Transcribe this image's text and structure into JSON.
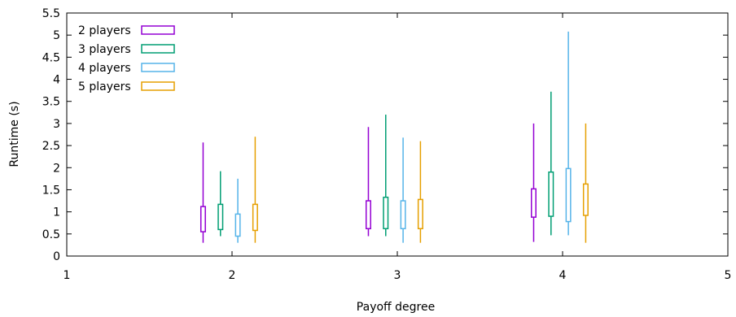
{
  "chart_data": {
    "type": "box",
    "xlabel": "Payoff degree",
    "ylabel": "Runtime (s)",
    "xlim": [
      1,
      5
    ],
    "ylim": [
      0,
      5.5
    ],
    "x_ticks": [
      "1",
      "2",
      "3",
      "4",
      "5"
    ],
    "y_ticks": [
      "0",
      "0.5",
      "1",
      "1.5",
      "2",
      "2.5",
      "3",
      "3.5",
      "4",
      "4.5",
      "5",
      "5.5"
    ],
    "legend_position": "top-left",
    "grid": false,
    "categories": [
      2,
      3,
      4
    ],
    "series": [
      {
        "name": "2 players",
        "color": "#9400d3",
        "boxes": [
          {
            "x": 2,
            "min": 0.3,
            "q1": 0.55,
            "q3": 1.12,
            "max": 2.57
          },
          {
            "x": 3,
            "min": 0.45,
            "q1": 0.62,
            "q3": 1.25,
            "max": 2.92
          },
          {
            "x": 4,
            "min": 0.32,
            "q1": 0.88,
            "q3": 1.52,
            "max": 3.0
          }
        ]
      },
      {
        "name": "3 players",
        "color": "#009e73",
        "boxes": [
          {
            "x": 2,
            "min": 0.45,
            "q1": 0.6,
            "q3": 1.17,
            "max": 1.92
          },
          {
            "x": 3,
            "min": 0.45,
            "q1": 0.62,
            "q3": 1.33,
            "max": 3.2
          },
          {
            "x": 4,
            "min": 0.47,
            "q1": 0.9,
            "q3": 1.9,
            "max": 3.72
          }
        ]
      },
      {
        "name": "4 players",
        "color": "#56b4e9",
        "boxes": [
          {
            "x": 2,
            "min": 0.3,
            "q1": 0.45,
            "q3": 0.95,
            "max": 1.75
          },
          {
            "x": 3,
            "min": 0.3,
            "q1": 0.62,
            "q3": 1.25,
            "max": 2.68
          },
          {
            "x": 4,
            "min": 0.47,
            "q1": 0.78,
            "q3": 1.98,
            "max": 5.08
          }
        ]
      },
      {
        "name": "5 players",
        "color": "#e69f00",
        "boxes": [
          {
            "x": 2,
            "min": 0.3,
            "q1": 0.58,
            "q3": 1.17,
            "max": 2.7
          },
          {
            "x": 3,
            "min": 0.3,
            "q1": 0.62,
            "q3": 1.28,
            "max": 2.6
          },
          {
            "x": 4,
            "min": 0.3,
            "q1": 0.92,
            "q3": 1.63,
            "max": 3.0
          }
        ]
      }
    ]
  }
}
